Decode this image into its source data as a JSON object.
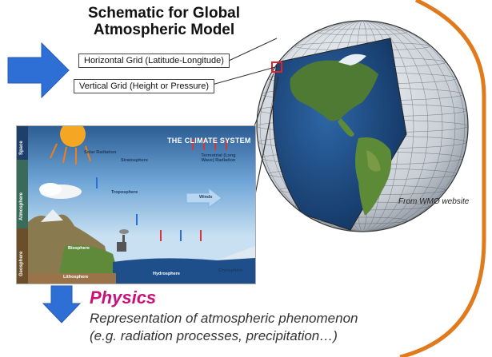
{
  "title_line1": "Schematic for Global",
  "title_line2": "Atmospheric Model",
  "horizontal_grid_label": "Horizontal Grid (Latitude-Longitude)",
  "vertical_grid_label": "Vertical Grid (Height or Pressure)",
  "source_label": "From WMO website",
  "physics_heading": "Physics",
  "physics_desc_line1": "Representation of atmospheric phenomenon",
  "physics_desc_line2": "(e.g. radiation processes, precipitation…)",
  "climate_system": {
    "title": "THE CLIMATE SYSTEM",
    "side_space": "Space",
    "side_atmosphere": "Atmosphere",
    "side_geosphere": "Geosphere",
    "solar_radiation": "Solar Radiation",
    "terrestrial_radiation": "Terrestrial (Long Wave) Radiation",
    "stratosphere": "Stratosphere",
    "troposphere": "Troposphere",
    "lithosphere": "Lithosphere",
    "hydrosphere": "Hydrosphere",
    "cryosphere": "Cryosphere",
    "biosphere": "Biosphere",
    "winds": "Winds"
  },
  "colors": {
    "arrow_blue": "#2e6fd6",
    "physics_magenta": "#c8117a",
    "border_orange": "#e07a1c",
    "ocean_blue": "#1f4f8a",
    "land_green": "#4f7a34",
    "grid_line": "#cfd6de",
    "sky_blue": "#7fb3df",
    "space_dark": "#2c5d94",
    "sun_orange": "#f5a623"
  }
}
